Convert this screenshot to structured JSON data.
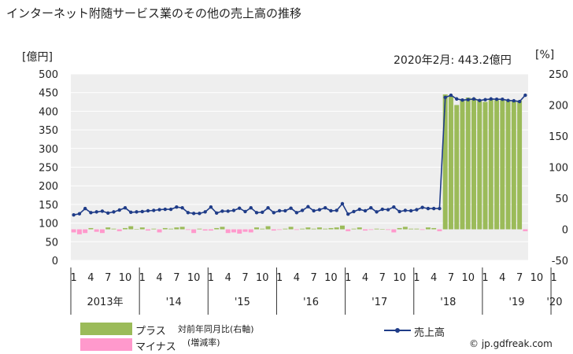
{
  "title": "インターネット附随サービス業のその他の売上高の推移",
  "latest_note": "2020年2月: 443.2億円",
  "credit": "© jp.gdfreak.com",
  "colors": {
    "plus": "#9bbb59",
    "minus": "#ff99cc",
    "line": "#1f3c88",
    "grid": "#ffffff",
    "plot_bg": "#eeeeee"
  },
  "legend": {
    "plus": "プラス",
    "minus": "マイナス",
    "yoy_line1": "対前年同月比(右軸)",
    "yoy_line2": "(増減率)",
    "sales": "売上高"
  },
  "chart_data": {
    "type": "bar+line",
    "title": "インターネット附随サービス業のその他の売上高の推移",
    "left_axis": {
      "unit": "[億円]",
      "min": 0,
      "max": 500,
      "ticks": [
        0,
        50,
        100,
        150,
        200,
        250,
        300,
        350,
        400,
        450,
        500
      ]
    },
    "right_axis": {
      "unit": "[%]",
      "min": -50,
      "max": 250,
      "ticks": [
        -50,
        0,
        50,
        100,
        150,
        200,
        250
      ]
    },
    "x_month_ticks": [
      "1",
      "4",
      "7",
      "10",
      "1",
      "4",
      "7",
      "10",
      "1",
      "4",
      "7",
      "10",
      "1",
      "4",
      "7",
      "10",
      "1",
      "4",
      "7",
      "10",
      "1",
      "4",
      "7",
      "10",
      "1",
      "4",
      "7",
      "10",
      "1"
    ],
    "x_year_labels": [
      "2013年",
      "'14",
      "'15",
      "'16",
      "'17",
      "'18",
      "'19",
      "'20"
    ],
    "series": [
      {
        "name": "売上高",
        "axis": "left",
        "values": [
          122,
          125,
          139,
          128,
          130,
          132,
          127,
          130,
          135,
          141,
          129,
          130,
          131,
          133,
          134,
          136,
          137,
          137,
          143,
          141,
          128,
          126,
          126,
          130,
          143,
          127,
          132,
          132,
          134,
          140,
          131,
          141,
          128,
          129,
          141,
          128,
          133,
          133,
          140,
          128,
          134,
          144,
          133,
          136,
          141,
          133,
          134,
          152,
          124,
          131,
          137,
          133,
          141,
          130,
          137,
          136,
          143,
          131,
          134,
          133,
          136,
          142,
          139,
          139,
          139,
          437,
          443,
          433,
          430,
          431,
          433,
          429,
          431,
          433,
          432,
          432,
          429,
          428,
          426,
          443
        ]
      },
      {
        "name": "対前年同月比",
        "axis": "right",
        "values": [
          -5,
          -8,
          -6,
          2,
          -4,
          -6,
          3,
          1,
          -3,
          2,
          5,
          0,
          3,
          -2,
          1,
          -5,
          2,
          1,
          3,
          4,
          -1,
          -6,
          1,
          -2,
          -2,
          2,
          4,
          -6,
          -5,
          -7,
          -4,
          -5,
          3,
          1,
          5,
          -2,
          -1,
          1,
          4,
          -1,
          1,
          3,
          1,
          3,
          1,
          2,
          3,
          6,
          -3,
          1,
          3,
          -2,
          -1,
          1,
          0,
          -1,
          -5,
          2,
          4,
          1,
          1,
          -1,
          3,
          2,
          -3,
          217,
          214,
          200,
          208,
          212,
          211,
          208,
          205,
          210,
          208,
          208,
          208,
          206,
          207,
          -3
        ]
      }
    ]
  }
}
